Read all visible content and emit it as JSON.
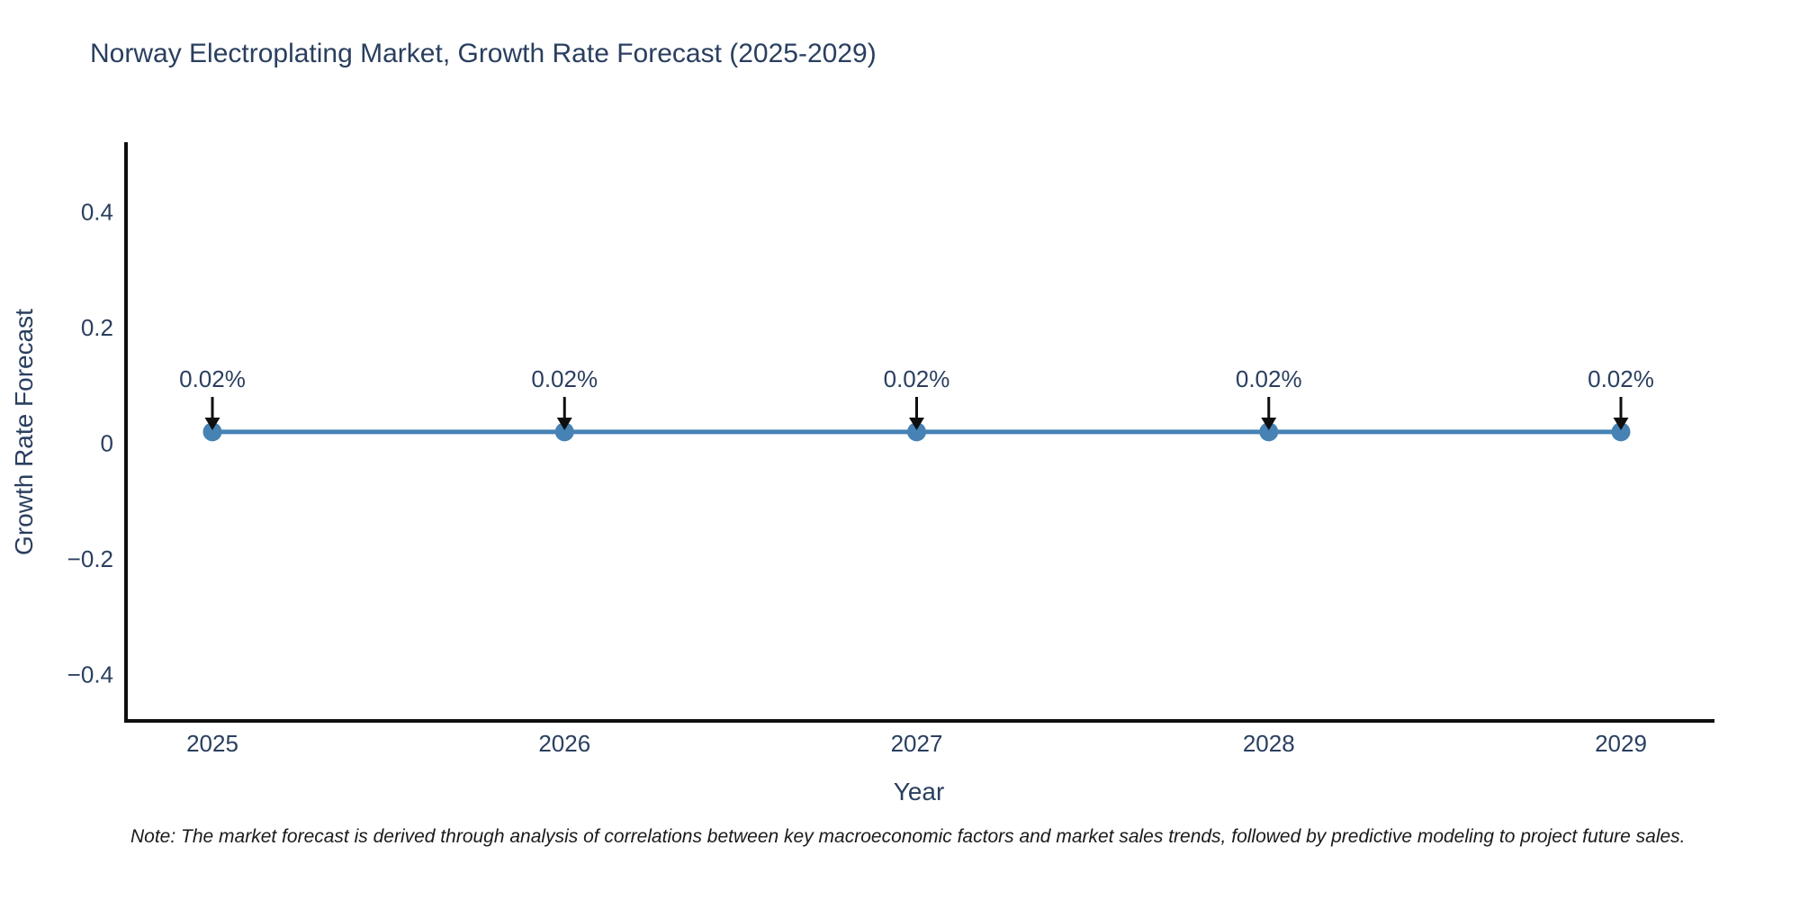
{
  "colors": {
    "accent_line": "#4682b4",
    "text": "#2a3f5f",
    "axis": "#0f0f0f",
    "arrow": "#0f0f0f",
    "note_text": "#1a1a1a"
  },
  "note": "Note: The market forecast is derived through analysis of correlations between key macroeconomic factors and market sales trends, followed by predictive modeling to project future sales.",
  "chart_data": {
    "type": "line",
    "title": "Norway Electroplating Market, Growth Rate Forecast (2025-2029)",
    "xlabel": "Year",
    "ylabel": "Growth Rate Forecast",
    "x": [
      2025,
      2026,
      2027,
      2028,
      2029
    ],
    "xtick_labels": [
      "2025",
      "2026",
      "2027",
      "2028",
      "2029"
    ],
    "series": [
      {
        "name": "Growth Rate Forecast",
        "values": [
          0.02,
          0.02,
          0.02,
          0.02,
          0.02
        ]
      }
    ],
    "annotations": [
      "0.02%",
      "0.02%",
      "0.02%",
      "0.02%",
      "0.02%"
    ],
    "yticks": [
      0.4,
      0.2,
      0,
      -0.2,
      -0.4
    ],
    "ytick_labels": [
      "0.4",
      "0.2",
      "0",
      "−0.2",
      "−0.4"
    ],
    "ylim": [
      -0.483,
      0.521
    ],
    "grid": false,
    "legend": "none",
    "marker": "circle"
  }
}
